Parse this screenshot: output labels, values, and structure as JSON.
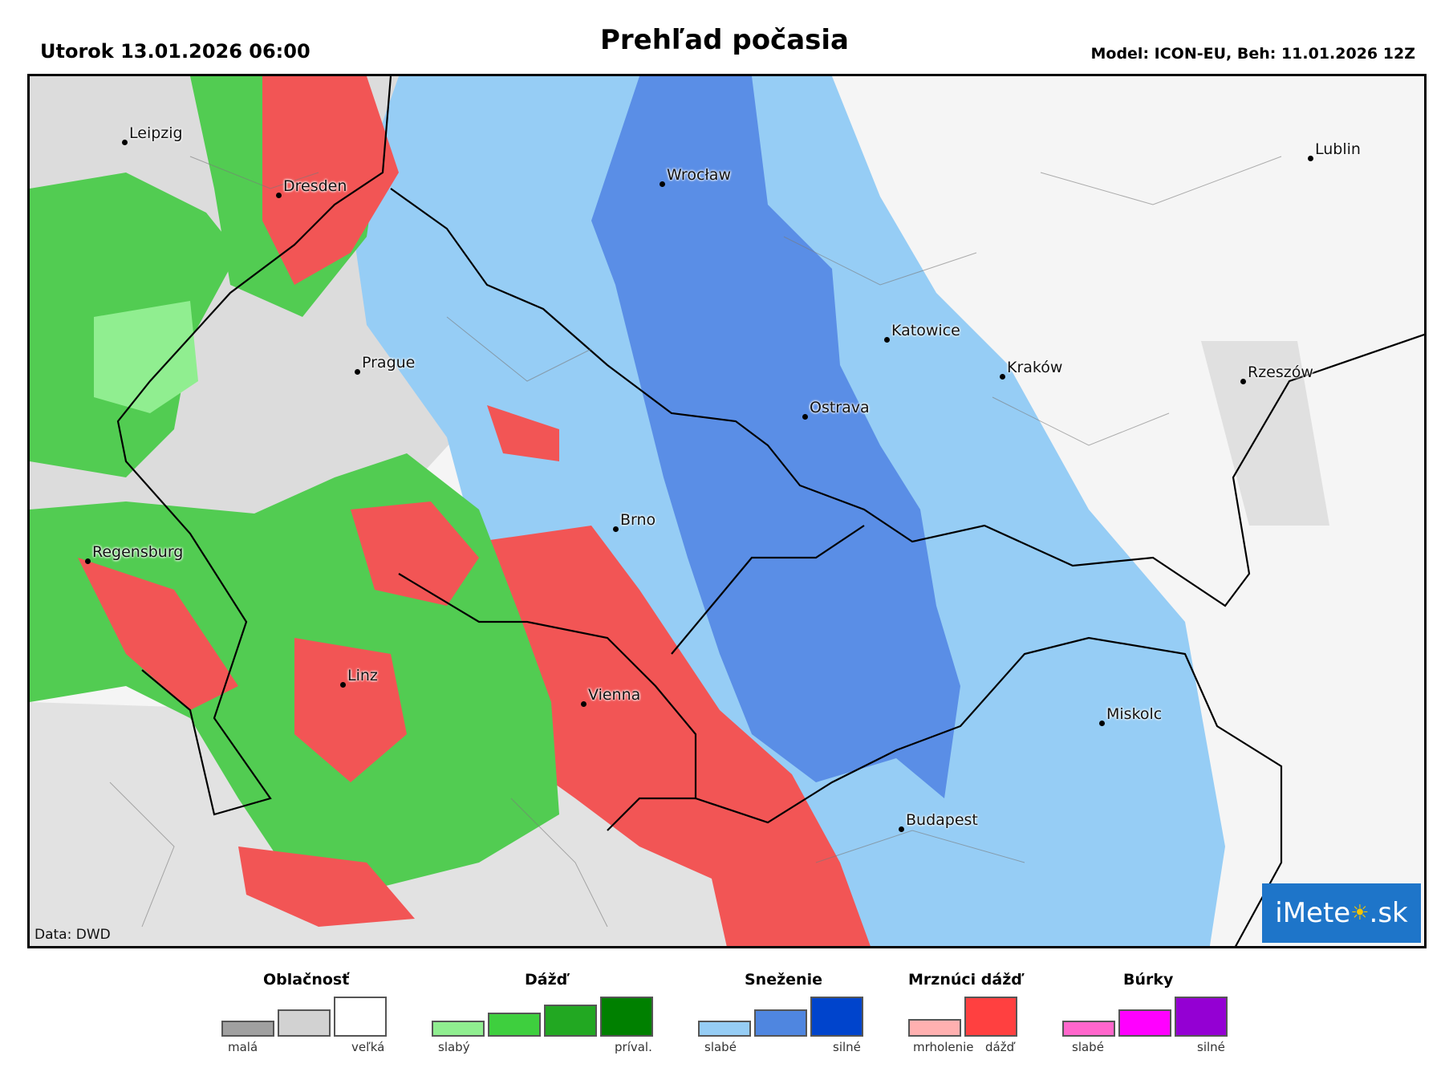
{
  "header": {
    "date": "Utorok 13.01.2026 06:00",
    "title": "Prehľad počasia",
    "model": "Model: ICON-EU, Beh: 11.01.2026 12Z"
  },
  "map": {
    "credit": "Data: DWD",
    "logo": {
      "left": "iMete",
      "sun": "☀",
      "right": ".sk"
    },
    "cities": [
      {
        "name": "Leipzig"
      },
      {
        "name": "Dresden"
      },
      {
        "name": "Wrocław"
      },
      {
        "name": "Lublin"
      },
      {
        "name": "Prague"
      },
      {
        "name": "Katowice"
      },
      {
        "name": "Kraków"
      },
      {
        "name": "Rzeszów"
      },
      {
        "name": "Ostrava"
      },
      {
        "name": "Brno"
      },
      {
        "name": "Regensburg"
      },
      {
        "name": "Linz"
      },
      {
        "name": "Vienna"
      },
      {
        "name": "Miskolc"
      },
      {
        "name": "Budapest"
      }
    ]
  },
  "colors": {
    "cloud_small": "#a0a0a0",
    "cloud_mid": "#d2d2d2",
    "cloud_large": "#ffffff",
    "rain_light": "#90ee90",
    "rain_mid": "#3ecf3e",
    "rain_strong": "#22a822",
    "rain_heavy": "#008000",
    "snow_light": "#96cdf5",
    "snow_mid": "#4f86e0",
    "snow_strong": "#0044cc",
    "frz_light": "#ffb0b0",
    "frz_strong": "#ff4040",
    "storm_light": "#ff66cc",
    "storm_mid": "#ff00ff",
    "storm_strong": "#9400d3"
  },
  "legend": {
    "cloud": {
      "title": "Oblačnosť",
      "low": "malá",
      "high": "veľká"
    },
    "rain": {
      "title": "Dážď",
      "low": "slabý",
      "high": "príval."
    },
    "snow": {
      "title": "Sneženie",
      "low": "slabé",
      "high": "silné"
    },
    "freezing": {
      "title": "Mrznúci dážď",
      "low": "mrholenie",
      "high": "dážď"
    },
    "storm": {
      "title": "Búrky",
      "low": "slabé",
      "high": "silné"
    }
  }
}
